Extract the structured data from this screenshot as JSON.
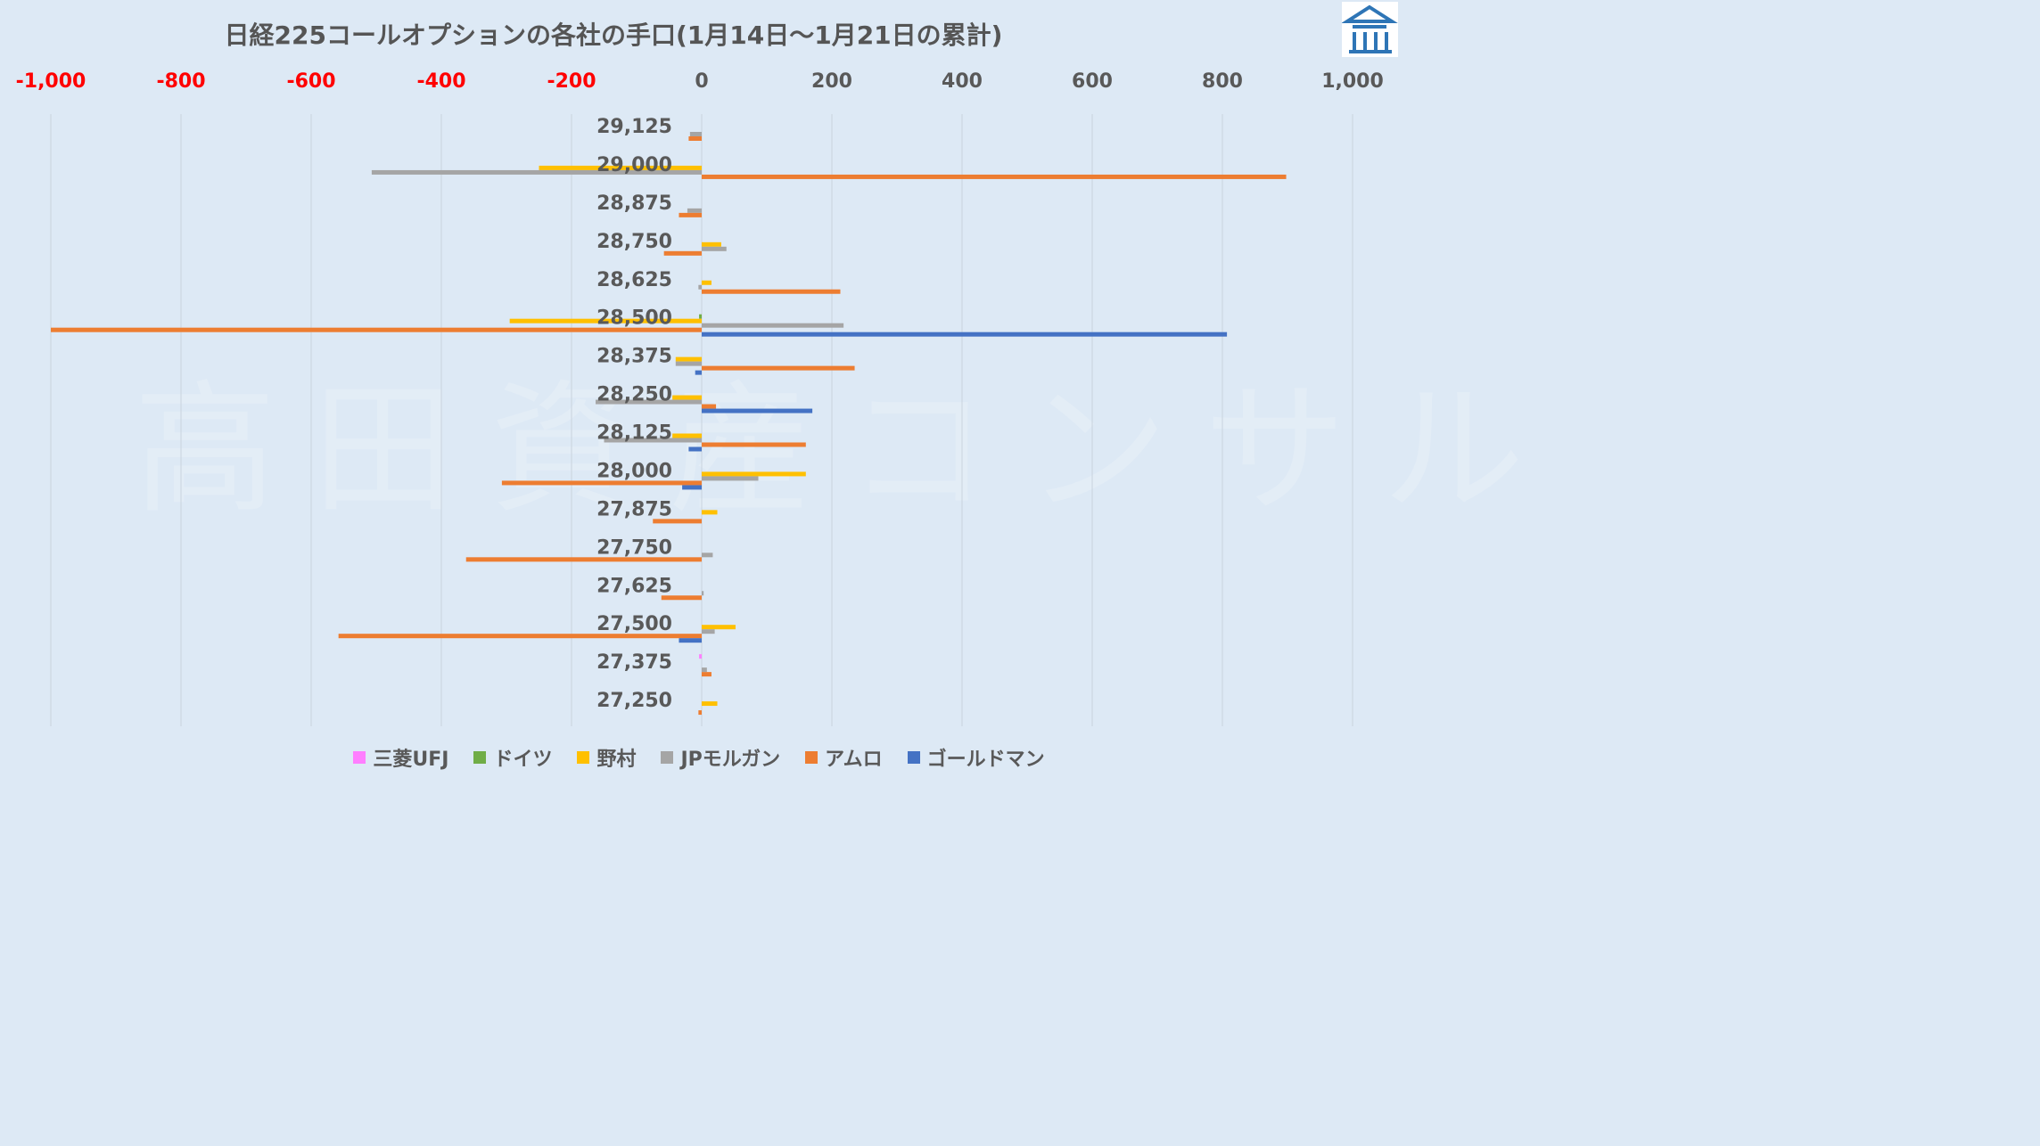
{
  "chart_data": {
    "type": "bar",
    "orientation": "horizontal",
    "title": "日経225コールオプションの各社の手口(1月14日〜1月21日の累計)",
    "xlim": [
      -1000,
      1000
    ],
    "x_ticks": [
      {
        "value": -1000,
        "label": "-1,000"
      },
      {
        "value": -800,
        "label": "-800"
      },
      {
        "value": -600,
        "label": "-600"
      },
      {
        "value": -400,
        "label": "-400"
      },
      {
        "value": -200,
        "label": "-200"
      },
      {
        "value": 0,
        "label": "0"
      },
      {
        "value": 200,
        "label": "200"
      },
      {
        "value": 400,
        "label": "400"
      },
      {
        "value": 600,
        "label": "600"
      },
      {
        "value": 800,
        "label": "800"
      },
      {
        "value": 1000,
        "label": "1,000"
      }
    ],
    "tick_colors": {
      "negative": "#ff0000",
      "positive": "#595959"
    },
    "grid": true,
    "legend_position": "bottom",
    "categories": [
      "29,125",
      "29,000",
      "28,875",
      "28,750",
      "28,625",
      "28,500",
      "28,375",
      "28,250",
      "28,125",
      "28,000",
      "27,875",
      "27,750",
      "27,625",
      "27,500",
      "27,375",
      "27,250"
    ],
    "series": [
      {
        "name": "三菱UFJ",
        "color": "#ff7fff",
        "values": [
          0,
          0,
          0,
          0,
          0,
          0,
          0,
          0,
          0,
          0,
          0,
          0,
          0,
          0,
          -4,
          0
        ]
      },
      {
        "name": "ドイツ",
        "color": "#70ad47",
        "values": [
          0,
          0,
          0,
          0,
          0,
          -4,
          0,
          0,
          0,
          0,
          0,
          0,
          0,
          0,
          0,
          0
        ]
      },
      {
        "name": "野村",
        "color": "#ffc000",
        "values": [
          0,
          -250,
          0,
          30,
          15,
          -295,
          -40,
          -45,
          -45,
          160,
          24,
          0,
          0,
          52,
          0,
          24
        ]
      },
      {
        "name": "JPモルガン",
        "color": "#a5a5a5",
        "values": [
          -18,
          -507,
          -22,
          38,
          -5,
          218,
          -40,
          -163,
          -150,
          87,
          0,
          17,
          3,
          20,
          8,
          0
        ]
      },
      {
        "name": "アムロ",
        "color": "#ed7d31",
        "values": [
          -20,
          898,
          -35,
          -58,
          213,
          -1000,
          235,
          22,
          160,
          -307,
          -75,
          -362,
          -62,
          -558,
          15,
          -5
        ]
      },
      {
        "name": "ゴールドマン",
        "color": "#4472c4",
        "values": [
          0,
          0,
          0,
          0,
          0,
          807,
          -10,
          170,
          -20,
          -30,
          0,
          0,
          0,
          -35,
          0,
          0
        ]
      }
    ]
  },
  "watermark": "高田資産コンサル",
  "logo": {
    "icon": "building-logo-icon",
    "color": "#2e75b6"
  }
}
